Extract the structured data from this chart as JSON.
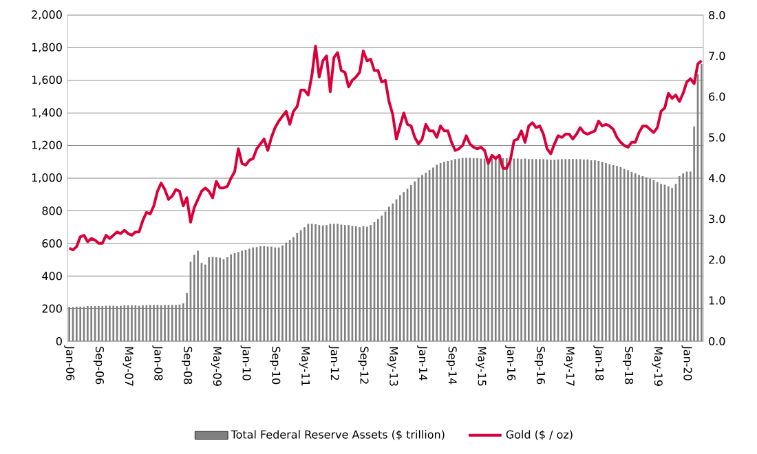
{
  "chart_data": {
    "type": "bar",
    "categories": [
      "Jan-06",
      null,
      null,
      null,
      null,
      null,
      null,
      null,
      "Sep-06",
      null,
      null,
      null,
      null,
      null,
      null,
      null,
      "May-07",
      null,
      null,
      null,
      null,
      null,
      null,
      null,
      "Jan-08",
      null,
      null,
      null,
      null,
      null,
      null,
      null,
      "Sep-08",
      null,
      null,
      null,
      null,
      null,
      null,
      null,
      "May-09",
      null,
      null,
      null,
      null,
      null,
      null,
      null,
      "Jan-10",
      null,
      null,
      null,
      null,
      null,
      null,
      null,
      "Sep-10",
      null,
      null,
      null,
      null,
      null,
      null,
      null,
      "May-11",
      null,
      null,
      null,
      null,
      null,
      null,
      null,
      "Jan-12",
      null,
      null,
      null,
      null,
      null,
      null,
      null,
      "Sep-12",
      null,
      null,
      null,
      null,
      null,
      null,
      null,
      "May-13",
      null,
      null,
      null,
      null,
      null,
      null,
      null,
      "Jan-14",
      null,
      null,
      null,
      null,
      null,
      null,
      null,
      "Sep-14",
      null,
      null,
      null,
      null,
      null,
      null,
      null,
      "May-15",
      null,
      null,
      null,
      null,
      null,
      null,
      null,
      "Jan-16",
      null,
      null,
      null,
      null,
      null,
      null,
      null,
      "Sep-16",
      null,
      null,
      null,
      null,
      null,
      null,
      null,
      "May-17",
      null,
      null,
      null,
      null,
      null,
      null,
      null,
      "Jan-18",
      null,
      null,
      null,
      null,
      null,
      null,
      null,
      "Sep-18",
      null,
      null,
      null,
      null,
      null,
      null,
      null,
      "May-19",
      null,
      null,
      null,
      null,
      null,
      null,
      null,
      "Jan-20",
      null,
      null,
      null,
      null
    ],
    "series": [
      {
        "name": "Total Federal Reserve Assets ($ trillion)",
        "axis": "y2",
        "color": "#808080",
        "values": [
          0.84,
          0.84,
          0.85,
          0.85,
          0.85,
          0.86,
          0.86,
          0.86,
          0.86,
          0.86,
          0.87,
          0.87,
          0.87,
          0.86,
          0.87,
          0.88,
          0.88,
          0.88,
          0.88,
          0.87,
          0.88,
          0.88,
          0.89,
          0.89,
          0.89,
          0.88,
          0.89,
          0.89,
          0.89,
          0.89,
          0.9,
          0.93,
          1.18,
          1.95,
          2.12,
          2.22,
          1.92,
          1.88,
          2.06,
          2.07,
          2.06,
          2.05,
          2.01,
          2.06,
          2.13,
          2.16,
          2.19,
          2.22,
          2.24,
          2.27,
          2.3,
          2.31,
          2.33,
          2.33,
          2.32,
          2.32,
          2.3,
          2.3,
          2.35,
          2.42,
          2.48,
          2.55,
          2.65,
          2.72,
          2.8,
          2.88,
          2.88,
          2.87,
          2.85,
          2.84,
          2.85,
          2.88,
          2.88,
          2.88,
          2.86,
          2.85,
          2.85,
          2.83,
          2.82,
          2.8,
          2.82,
          2.81,
          2.85,
          2.92,
          3.0,
          3.08,
          3.18,
          3.3,
          3.38,
          3.48,
          3.58,
          3.66,
          3.74,
          3.83,
          3.92,
          4.01,
          4.08,
          4.13,
          4.2,
          4.26,
          4.33,
          4.37,
          4.4,
          4.42,
          4.44,
          4.47,
          4.48,
          4.5,
          4.5,
          4.5,
          4.49,
          4.49,
          4.48,
          4.48,
          4.48,
          4.48,
          4.48,
          4.49,
          4.49,
          4.49,
          4.49,
          4.48,
          4.48,
          4.47,
          4.48,
          4.47,
          4.47,
          4.47,
          4.47,
          4.47,
          4.46,
          4.45,
          4.45,
          4.46,
          4.47,
          4.47,
          4.47,
          4.47,
          4.47,
          4.47,
          4.46,
          4.46,
          4.44,
          4.44,
          4.42,
          4.4,
          4.37,
          4.34,
          4.32,
          4.3,
          4.27,
          4.23,
          4.2,
          4.15,
          4.12,
          4.08,
          4.05,
          4.02,
          3.99,
          3.95,
          3.9,
          3.86,
          3.84,
          3.8,
          3.76,
          3.86,
          4.05,
          4.12,
          4.16,
          4.16,
          5.27,
          6.55,
          6.8
        ]
      },
      {
        "name": "Gold ($ / oz)",
        "type": "line",
        "axis": "y",
        "color": "#d9003a",
        "values": [
          570,
          560,
          580,
          640,
          650,
          610,
          630,
          620,
          600,
          600,
          650,
          630,
          650,
          670,
          660,
          680,
          660,
          650,
          670,
          670,
          740,
          790,
          780,
          830,
          920,
          970,
          930,
          870,
          890,
          930,
          920,
          830,
          880,
          730,
          820,
          870,
          920,
          940,
          920,
          880,
          980,
          940,
          940,
          950,
          1000,
          1040,
          1180,
          1090,
          1080,
          1110,
          1120,
          1180,
          1210,
          1240,
          1170,
          1250,
          1310,
          1350,
          1380,
          1410,
          1330,
          1410,
          1440,
          1540,
          1540,
          1510,
          1630,
          1810,
          1620,
          1720,
          1750,
          1530,
          1740,
          1770,
          1660,
          1650,
          1560,
          1600,
          1620,
          1650,
          1780,
          1720,
          1730,
          1660,
          1660,
          1590,
          1600,
          1470,
          1390,
          1240,
          1320,
          1400,
          1330,
          1320,
          1250,
          1210,
          1240,
          1330,
          1290,
          1290,
          1250,
          1320,
          1290,
          1290,
          1220,
          1170,
          1180,
          1200,
          1260,
          1210,
          1190,
          1180,
          1190,
          1170,
          1090,
          1140,
          1120,
          1140,
          1060,
          1060,
          1110,
          1230,
          1240,
          1290,
          1220,
          1320,
          1340,
          1310,
          1320,
          1270,
          1180,
          1150,
          1210,
          1260,
          1250,
          1270,
          1270,
          1240,
          1270,
          1310,
          1280,
          1270,
          1280,
          1290,
          1350,
          1320,
          1330,
          1320,
          1300,
          1250,
          1220,
          1200,
          1190,
          1220,
          1220,
          1280,
          1320,
          1320,
          1300,
          1280,
          1310,
          1410,
          1430,
          1520,
          1490,
          1510,
          1470,
          1520,
          1590,
          1610,
          1580,
          1700,
          1720
        ]
      }
    ],
    "ylim": [
      0,
      2000
    ],
    "yticks": [
      0,
      {
        "value": 200,
        "label": "200"
      },
      {
        "value": 400,
        "label": "400"
      },
      {
        "value": 600,
        "label": "600"
      },
      {
        "value": 800,
        "label": "800"
      },
      {
        "value": 1000,
        "label": "1,000"
      },
      {
        "value": 1200,
        "label": "1,200"
      },
      {
        "value": 1400,
        "label": "1,400"
      },
      {
        "value": 1600,
        "label": "1,600"
      },
      {
        "value": 1800,
        "label": "1,800"
      },
      {
        "value": 2000,
        "label": "2,000"
      }
    ],
    "y2lim": [
      0,
      8
    ],
    "y2ticks": [
      {
        "value": 0,
        "label": "0.0"
      },
      {
        "value": 1,
        "label": "1.0"
      },
      {
        "value": 2,
        "label": "2.0"
      },
      {
        "value": 3,
        "label": "3.0"
      },
      {
        "value": 4,
        "label": "4.0"
      },
      {
        "value": 5,
        "label": "5.0"
      },
      {
        "value": 6,
        "label": "6.0"
      },
      {
        "value": 7,
        "label": "7.0"
      },
      {
        "value": 8,
        "label": "8.0"
      }
    ],
    "grid": "y",
    "legend": "bottom",
    "marker": "none",
    "line_style": "solid"
  }
}
